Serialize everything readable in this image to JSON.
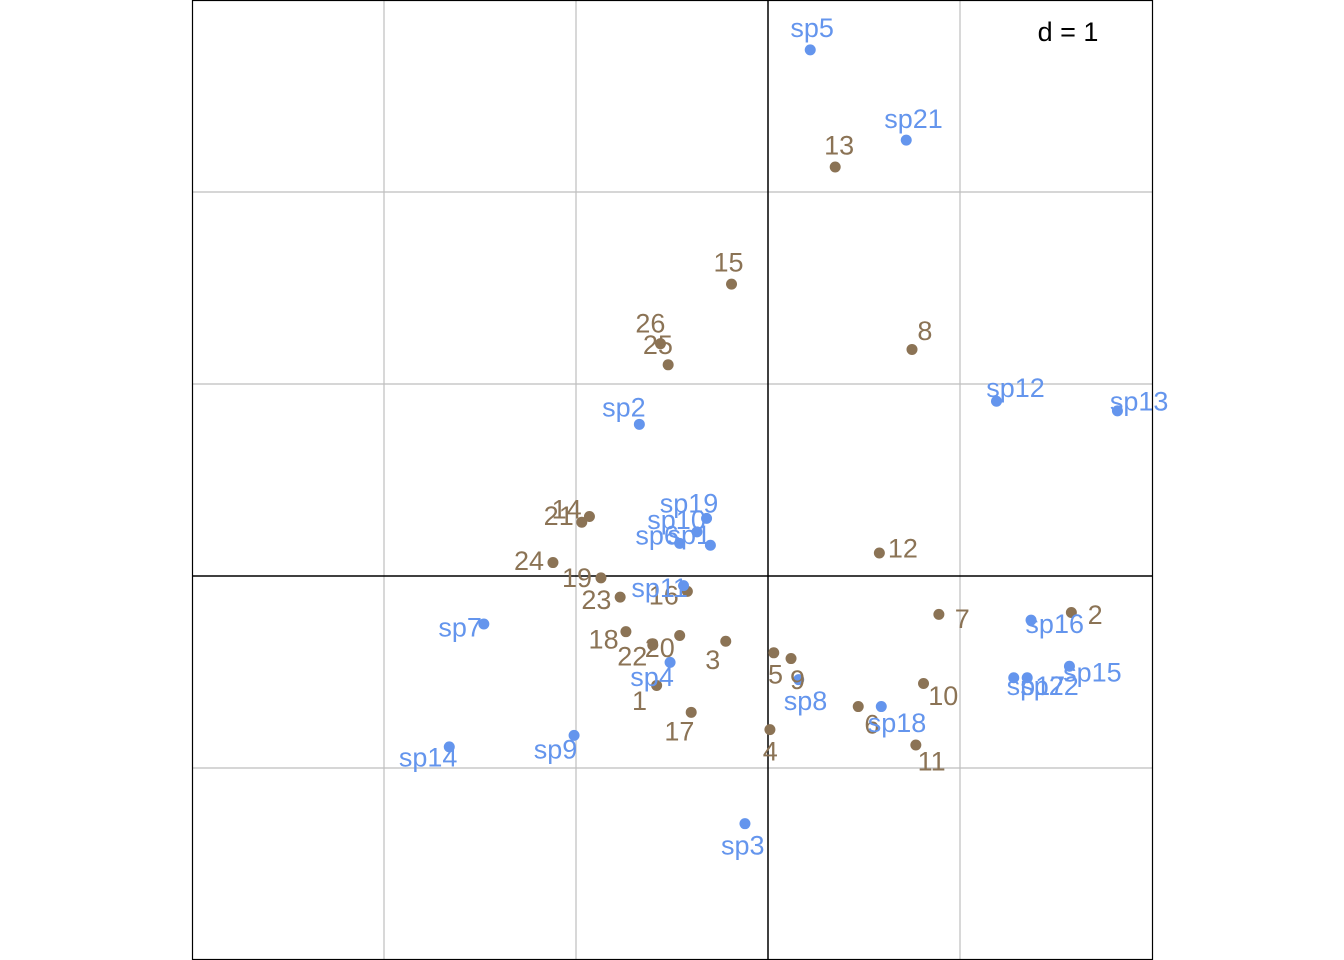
{
  "chart_data": {
    "type": "scatter",
    "title": "",
    "xlabel": "",
    "ylabel": "",
    "xlim": [
      -3,
      2
    ],
    "ylim": [
      -2,
      3
    ],
    "grid": true,
    "grid_step": 1,
    "scale_label": "d = 1",
    "scale_label_position": "top-right",
    "colors": {
      "sites": "#8B7355",
      "species": "#6495ED",
      "grid": "#BEBEBE",
      "axes": "#000000",
      "background": "#FFFFFF"
    },
    "series": [
      {
        "key": "sites",
        "points": [
          {
            "label": "1",
            "x": -0.58,
            "y": -0.57
          },
          {
            "label": "2",
            "x": 1.58,
            "y": -0.19
          },
          {
            "label": "3",
            "x": -0.22,
            "y": -0.34
          },
          {
            "label": "4",
            "x": 0.01,
            "y": -0.8
          },
          {
            "label": "5",
            "x": 0.03,
            "y": -0.4
          },
          {
            "label": "6",
            "x": 0.47,
            "y": -0.68
          },
          {
            "label": "7",
            "x": 0.89,
            "y": -0.2
          },
          {
            "label": "8",
            "x": 0.75,
            "y": 1.18
          },
          {
            "label": "9",
            "x": 0.12,
            "y": -0.43
          },
          {
            "label": "10",
            "x": 0.81,
            "y": -0.56
          },
          {
            "label": "11",
            "x": 0.77,
            "y": -0.88
          },
          {
            "label": "12",
            "x": 0.58,
            "y": 0.12
          },
          {
            "label": "13",
            "x": 0.35,
            "y": 2.13
          },
          {
            "label": "14",
            "x": -0.93,
            "y": 0.31
          },
          {
            "label": "15",
            "x": -0.19,
            "y": 1.52
          },
          {
            "label": "16",
            "x": -0.42,
            "y": -0.08
          },
          {
            "label": "17",
            "x": -0.4,
            "y": -0.71
          },
          {
            "label": "18",
            "x": -0.74,
            "y": -0.29
          },
          {
            "label": "19",
            "x": -0.87,
            "y": -0.01
          },
          {
            "label": "20",
            "x": -0.46,
            "y": -0.31
          },
          {
            "label": "21",
            "x": -0.97,
            "y": 0.28
          },
          {
            "label": "22",
            "x": -0.6,
            "y": -0.36
          },
          {
            "label": "23",
            "x": -0.77,
            "y": -0.11
          },
          {
            "label": "24",
            "x": -1.12,
            "y": 0.07
          },
          {
            "label": "25",
            "x": -0.52,
            "y": 1.1
          },
          {
            "label": "26",
            "x": -0.56,
            "y": 1.21
          }
        ]
      },
      {
        "key": "species",
        "points": [
          {
            "label": "sp1",
            "x": -0.3,
            "y": 0.16
          },
          {
            "label": "sp2",
            "x": -0.67,
            "y": 0.79
          },
          {
            "label": "sp3",
            "x": -0.12,
            "y": -1.29
          },
          {
            "label": "sp4",
            "x": -0.51,
            "y": -0.45
          },
          {
            "label": "sp5",
            "x": 0.22,
            "y": 2.74
          },
          {
            "label": "sp6",
            "x": -0.46,
            "y": 0.17
          },
          {
            "label": "sp7",
            "x": -1.48,
            "y": -0.25
          },
          {
            "label": "sp8",
            "x": 0.16,
            "y": -0.54
          },
          {
            "label": "sp9",
            "x": -1.01,
            "y": -0.83
          },
          {
            "label": "sp10",
            "x": -0.37,
            "y": 0.23
          },
          {
            "label": "sp11",
            "x": -0.44,
            "y": -0.05
          },
          {
            "label": "sp12",
            "x": 1.19,
            "y": 0.91
          },
          {
            "label": "sp13",
            "x": 1.82,
            "y": 0.86
          },
          {
            "label": "sp14",
            "x": -1.66,
            "y": -0.89
          },
          {
            "label": "sp15",
            "x": 1.57,
            "y": -0.47
          },
          {
            "label": "sp16",
            "x": 1.37,
            "y": -0.23
          },
          {
            "label": "sp17",
            "x": 1.28,
            "y": -0.53
          },
          {
            "label": "sp18",
            "x": 0.59,
            "y": -0.68
          },
          {
            "label": "sp19",
            "x": -0.32,
            "y": 0.3
          },
          {
            "label": "sp21",
            "x": 0.72,
            "y": 2.27
          },
          {
            "label": "sp22",
            "x": 1.35,
            "y": -0.53
          }
        ]
      }
    ]
  }
}
